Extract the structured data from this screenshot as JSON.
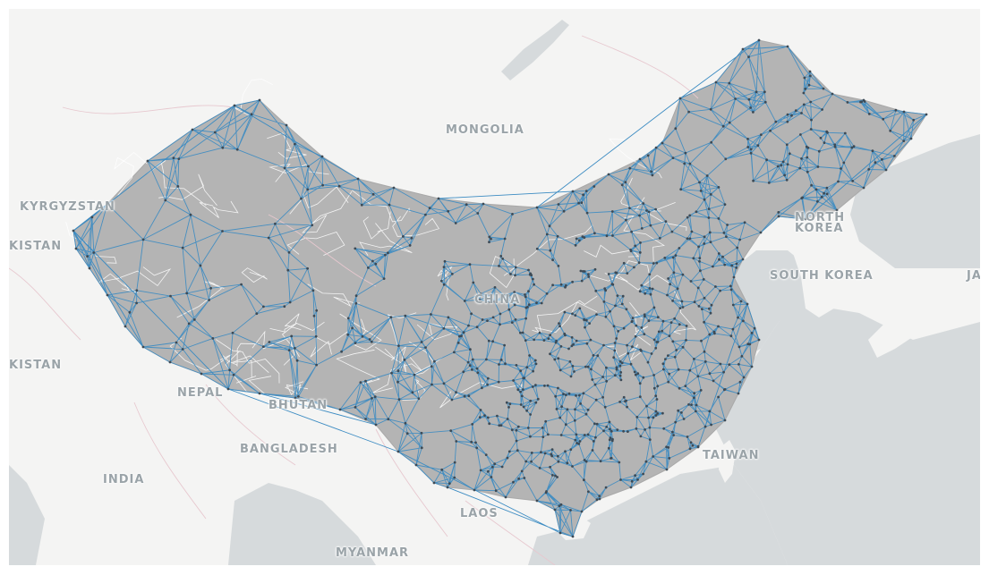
{
  "map": {
    "colors": {
      "sea": "#d6dadc",
      "land": "#f4f4f3",
      "china_fill": "#b4b4b4",
      "network_edge": "#3b8bc2",
      "network_node": "#3d4a55",
      "border": "#e7c8cf",
      "province_line": "#ffffff"
    },
    "labels": {
      "mongolia": "MONGOLIA",
      "kyrgyzstan": "KYRGYZSTAN",
      "kistan_top": "KISTAN",
      "kistan_bottom": "KISTAN",
      "china": "CHINA",
      "north_korea_1": "NORTH",
      "north_korea_2": "KOREA",
      "south_korea": "SOUTH KOREA",
      "japan_partial": "JA",
      "nepal": "NEPAL",
      "bhutan": "BHUTAN",
      "bangladesh": "BANGLADESH",
      "india": "INDIA",
      "taiwan": "TAIWAN",
      "laos": "LAOS",
      "myanmar": "MYANMAR"
    },
    "network": {
      "description_type": "delaunay-mesh",
      "node_count_estimate": 2600
    }
  }
}
